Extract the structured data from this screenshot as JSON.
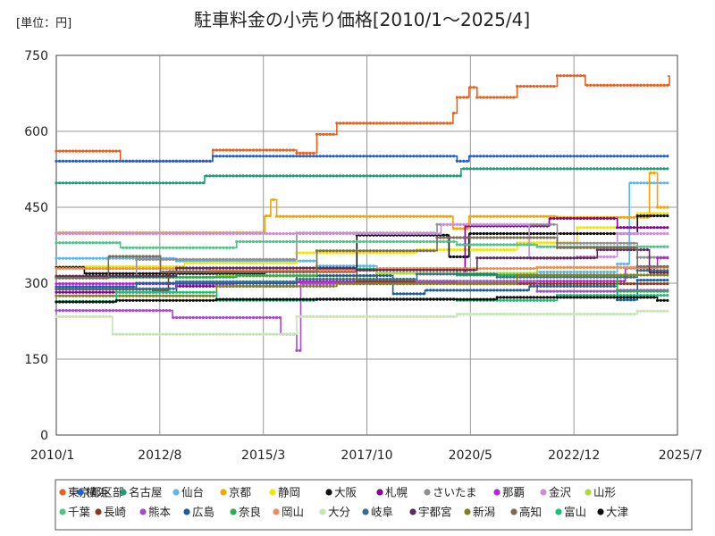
{
  "chart_data": {
    "type": "line",
    "title": "駐車料金の小売り価格[2010/1～2025/4]",
    "unit_label": "[単位：円]",
    "ylim": [
      0,
      750
    ],
    "yticks": [
      0,
      150,
      300,
      450,
      600,
      750
    ],
    "xlim": [
      2010.0,
      2025.5
    ],
    "xticks": [
      {
        "label": "2010/1",
        "v": 2010.0
      },
      {
        "label": "2012/8",
        "v": 2012.583
      },
      {
        "label": "2015/3",
        "v": 2015.167
      },
      {
        "label": "2017/10",
        "v": 2017.75
      },
      {
        "label": "2020/5",
        "v": 2020.333
      },
      {
        "label": "2022/12",
        "v": 2022.917
      },
      {
        "label": "2025/7",
        "v": 2025.5
      }
    ],
    "grid": true,
    "legend_position": "bottom",
    "series": [
      {
        "name": "東京都区部",
        "color": "#e8601c",
        "steps": [
          [
            2010.0,
            561
          ],
          [
            2011.6,
            541
          ],
          [
            2013.9,
            563
          ],
          [
            2016.0,
            557
          ],
          [
            2016.5,
            594
          ],
          [
            2017.0,
            616
          ],
          [
            2019.9,
            636
          ],
          [
            2020.0,
            667
          ],
          [
            2020.3,
            687
          ],
          [
            2020.5,
            667
          ],
          [
            2021.5,
            689
          ],
          [
            2022.5,
            710
          ],
          [
            2023.2,
            691
          ],
          [
            2025.3,
            709
          ]
        ]
      },
      {
        "name": "横浜",
        "color": "#1f5fd6",
        "steps": [
          [
            2010.0,
            541
          ],
          [
            2013.9,
            551
          ],
          [
            2020.0,
            541
          ],
          [
            2020.3,
            551
          ]
        ]
      },
      {
        "name": "名古屋",
        "color": "#1a9e77",
        "steps": [
          [
            2010.0,
            498
          ],
          [
            2013.7,
            512
          ],
          [
            2020.1,
            526
          ]
        ]
      },
      {
        "name": "仙台",
        "color": "#5bb8ee",
        "steps": [
          [
            2010.0,
            349
          ],
          [
            2013.0,
            344
          ],
          [
            2016.5,
            334
          ],
          [
            2018.0,
            329
          ],
          [
            2020.0,
            316
          ],
          [
            2022.0,
            322
          ],
          [
            2024.0,
            338
          ],
          [
            2024.3,
            498
          ]
        ]
      },
      {
        "name": "京都",
        "color": "#f5a300",
        "steps": [
          [
            2010.0,
            400
          ],
          [
            2015.2,
            433
          ],
          [
            2015.35,
            465
          ],
          [
            2015.5,
            432
          ],
          [
            2019.9,
            408
          ],
          [
            2020.3,
            432
          ],
          [
            2022.5,
            430
          ],
          [
            2024.8,
            518
          ],
          [
            2025.0,
            450
          ]
        ]
      },
      {
        "name": "静岡",
        "color": "#f2e600",
        "steps": [
          [
            2010.0,
            333
          ],
          [
            2013.2,
            340
          ],
          [
            2016.0,
            360
          ],
          [
            2019.0,
            366
          ],
          [
            2021.5,
            380
          ],
          [
            2023.0,
            410
          ],
          [
            2024.5,
            438
          ]
        ]
      },
      {
        "name": "大阪",
        "color": "#111111",
        "steps": [
          [
            2010.0,
            331
          ],
          [
            2010.7,
            319
          ],
          [
            2013.4,
            319
          ],
          [
            2015.2,
            323
          ],
          [
            2017.5,
            395
          ],
          [
            2019.8,
            352
          ],
          [
            2020.3,
            398
          ],
          [
            2024.5,
            433
          ]
        ]
      },
      {
        "name": "札幌",
        "color": "#8a0099",
        "steps": [
          [
            2010.0,
            282
          ],
          [
            2013.0,
            294
          ],
          [
            2016.0,
            303
          ],
          [
            2018.0,
            320
          ],
          [
            2020.2,
            413
          ],
          [
            2022.3,
            428
          ],
          [
            2024.0,
            410
          ]
        ]
      },
      {
        "name": "さいたま",
        "color": "#909090",
        "steps": [
          [
            2010.0,
            311
          ],
          [
            2012.0,
            347
          ],
          [
            2016.0,
            399
          ],
          [
            2019.5,
            416
          ],
          [
            2022.5,
            379
          ],
          [
            2024.5,
            351
          ]
        ]
      },
      {
        "name": "那覇",
        "color": "#b624d8",
        "steps": [
          [
            2010.0,
            299
          ],
          [
            2014.5,
            300
          ],
          [
            2016.0,
            302
          ],
          [
            2020.0,
            300
          ],
          [
            2022.0,
            304
          ],
          [
            2024.2,
            330
          ],
          [
            2025.0,
            350
          ]
        ]
      },
      {
        "name": "金沢",
        "color": "#c98fd8",
        "steps": [
          [
            2010.0,
            398
          ],
          [
            2019.6,
            416
          ],
          [
            2021.8,
            349
          ],
          [
            2023.0,
            352
          ],
          [
            2024.0,
            398
          ]
        ]
      },
      {
        "name": "山形",
        "color": "#a6df35",
        "steps": [
          [
            2010.0,
            311
          ],
          [
            2014.0,
            314
          ],
          [
            2018.0,
            320
          ],
          [
            2022.0,
            331
          ]
        ]
      },
      {
        "name": "千葉",
        "color": "#4fc48a",
        "steps": [
          [
            2010.0,
            380
          ],
          [
            2011.6,
            370
          ],
          [
            2014.5,
            382
          ],
          [
            2020.0,
            376
          ],
          [
            2022.0,
            372
          ]
        ]
      },
      {
        "name": "長崎",
        "color": "#8b3a1e",
        "steps": [
          [
            2010.0,
            288
          ],
          [
            2012.4,
            286
          ],
          [
            2012.8,
            323
          ],
          [
            2017.5,
            304
          ],
          [
            2020.0,
            299
          ]
        ]
      },
      {
        "name": "熊本",
        "color": "#a54fc4",
        "steps": [
          [
            2010.0,
            246
          ],
          [
            2012.9,
            232
          ],
          [
            2015.6,
            199
          ],
          [
            2016.0,
            167
          ],
          [
            2016.1,
            299
          ],
          [
            2019.0,
            304
          ],
          [
            2022.0,
            284
          ],
          [
            2024.0,
            286
          ]
        ]
      },
      {
        "name": "広島",
        "color": "#1b5e9e",
        "steps": [
          [
            2010.0,
            293
          ],
          [
            2012.0,
            300
          ],
          [
            2016.0,
            315
          ],
          [
            2018.4,
            279
          ],
          [
            2019.2,
            286
          ],
          [
            2021.8,
            294
          ],
          [
            2024.0,
            267
          ],
          [
            2024.5,
            306
          ]
        ]
      },
      {
        "name": "奈良",
        "color": "#27b04d",
        "steps": [
          [
            2010.0,
            312
          ],
          [
            2014.5,
            315
          ],
          [
            2016.5,
            328
          ],
          [
            2020.0,
            316
          ],
          [
            2024.0,
            284
          ]
        ]
      },
      {
        "name": "岡山",
        "color": "#f08c5a",
        "steps": [
          [
            2010.0,
            329
          ],
          [
            2013.8,
            325
          ],
          [
            2018.0,
            329
          ],
          [
            2022.0,
            331
          ]
        ]
      },
      {
        "name": "大分",
        "color": "#c5e6b3",
        "steps": [
          [
            2010.0,
            234
          ],
          [
            2011.4,
            199
          ],
          [
            2016.0,
            234
          ],
          [
            2020.0,
            239
          ],
          [
            2024.5,
            245
          ]
        ]
      },
      {
        "name": "岐阜",
        "color": "#356f8f",
        "steps": [
          [
            2010.0,
            289
          ],
          [
            2013.0,
            303
          ],
          [
            2016.0,
            308
          ],
          [
            2019.0,
            318
          ],
          [
            2021.0,
            312
          ],
          [
            2024.5,
            325
          ]
        ]
      },
      {
        "name": "宇都宮",
        "color": "#5e2a5e",
        "steps": [
          [
            2010.0,
            314
          ],
          [
            2013.0,
            330
          ],
          [
            2017.5,
            326
          ],
          [
            2020.5,
            350
          ],
          [
            2023.5,
            366
          ],
          [
            2024.8,
            321
          ]
        ]
      },
      {
        "name": "新潟",
        "color": "#808020",
        "steps": [
          [
            2010.0,
            275
          ],
          [
            2014.0,
            294
          ],
          [
            2017.0,
            299
          ],
          [
            2021.5,
            316
          ]
        ]
      },
      {
        "name": "高知",
        "color": "#7c6a55",
        "steps": [
          [
            2010.0,
            310
          ],
          [
            2011.3,
            353
          ],
          [
            2012.6,
            322
          ],
          [
            2016.5,
            364
          ],
          [
            2019.5,
            390
          ],
          [
            2022.5,
            370
          ],
          [
            2024.5,
            333
          ]
        ]
      },
      {
        "name": "富山",
        "color": "#17c27a",
        "steps": [
          [
            2010.0,
            264
          ],
          [
            2011.5,
            282
          ],
          [
            2014.0,
            266
          ],
          [
            2016.5,
            269
          ],
          [
            2020.0,
            266
          ],
          [
            2022.5,
            276
          ]
        ]
      },
      {
        "name": "大津",
        "color": "#0e0e0e",
        "steps": [
          [
            2010.0,
            263
          ],
          [
            2011.5,
            266
          ],
          [
            2014.0,
            268
          ],
          [
            2018.0,
            268
          ],
          [
            2021.0,
            272
          ],
          [
            2025.0,
            266
          ]
        ]
      }
    ]
  }
}
